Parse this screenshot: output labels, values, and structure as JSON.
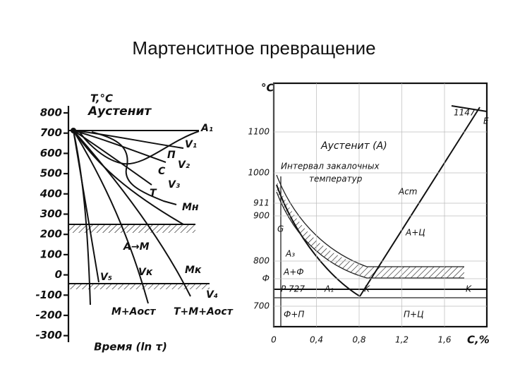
{
  "title": "Мартенситное превращение",
  "left_diagram": {
    "y_axis_label": "T,°C",
    "y_ticks": [
      "800",
      "700",
      "600",
      "500",
      "400",
      "300",
      "200",
      "100",
      "0",
      "-100",
      "-200",
      "-300"
    ],
    "x_axis_label": "Время (ln τ)",
    "labels": [
      "Аустенит",
      "A₁",
      "V₁",
      "П",
      "V₂",
      "С",
      "V₃",
      "Т",
      "Mн",
      "A→M",
      "V₅",
      "Vк",
      "Mк",
      "V₄",
      "M+Aост",
      "T+M+Aост"
    ]
  },
  "right_diagram": {
    "y_axis_label": "°C",
    "y_ticks": [
      "1100",
      "1000",
      "911",
      "900",
      "800",
      "Ф",
      "700"
    ],
    "x_ticks": [
      "0",
      "0,4",
      "0,8",
      "1,2",
      "1,6"
    ],
    "x_axis_label": "C,%",
    "labels": [
      "1147",
      "E",
      "Аустенит (A)",
      "Интервал закалочных",
      "температур",
      "Acm",
      "G",
      "A+Ц",
      "A₃",
      "A+Ф",
      "P 727",
      "A₁",
      "K",
      "K",
      "Ф+П",
      "П+Ц"
    ]
  }
}
